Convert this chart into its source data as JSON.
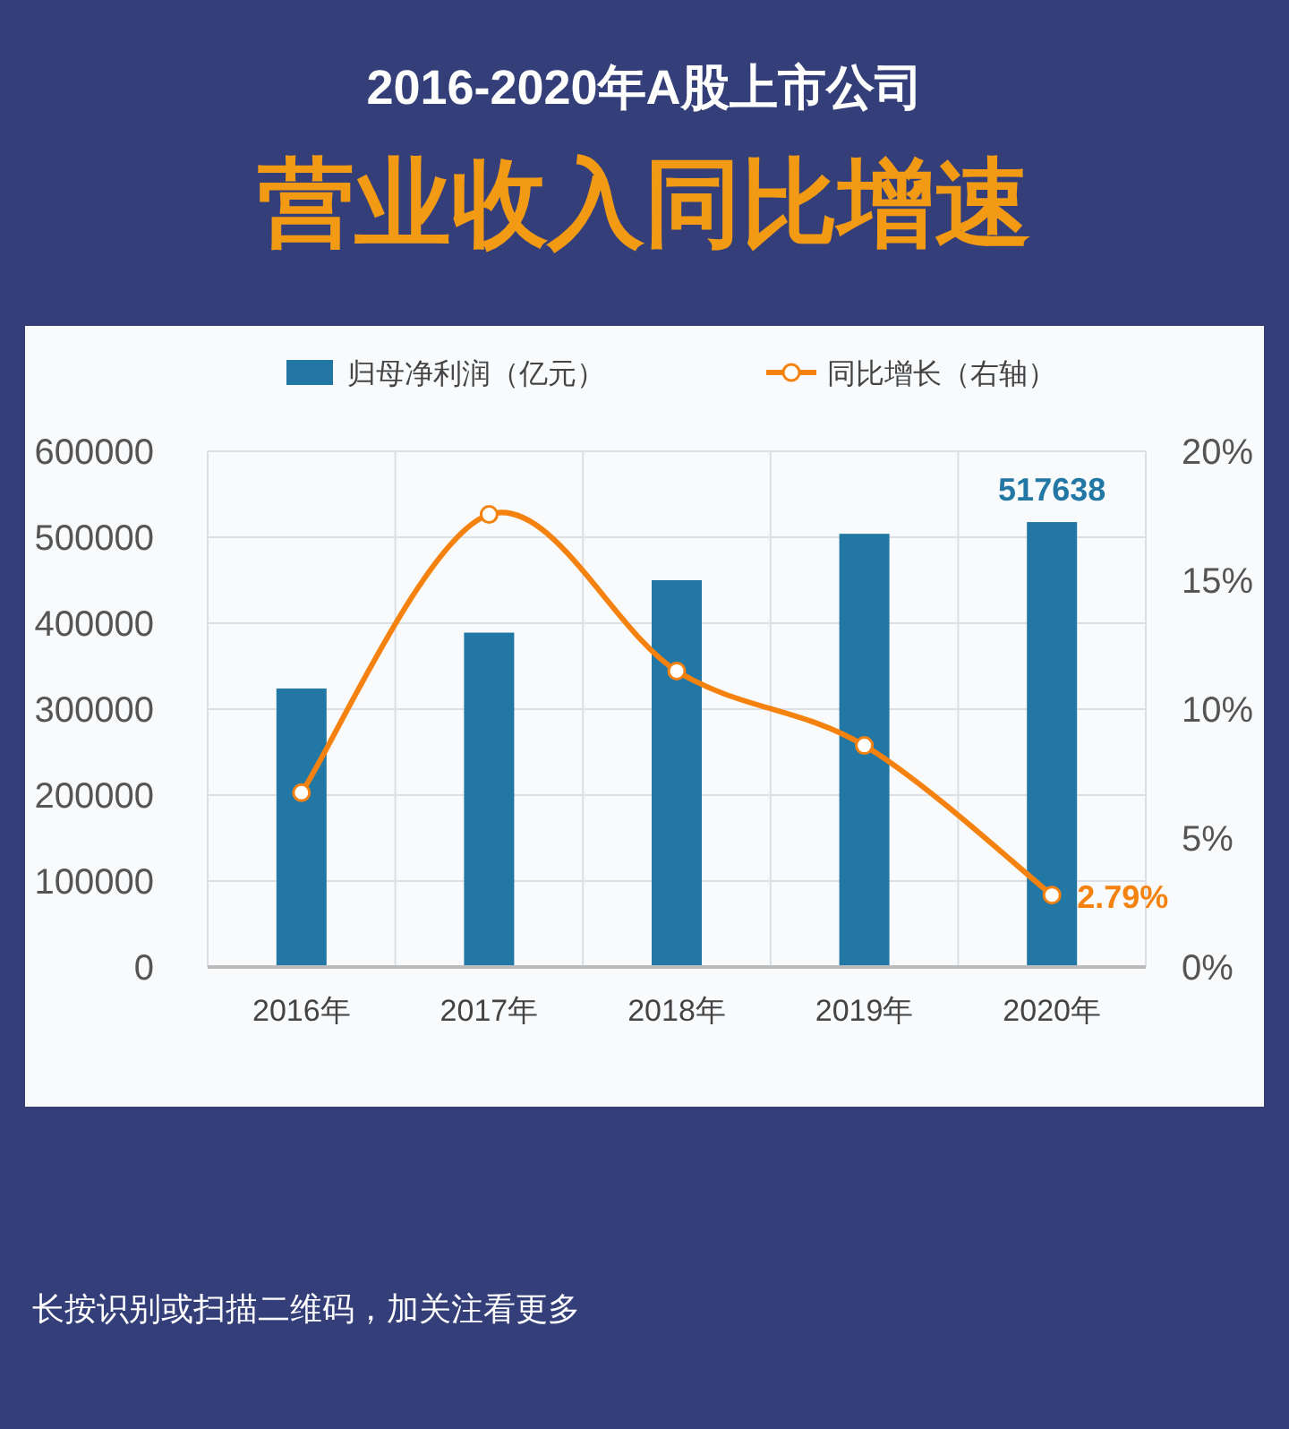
{
  "chart_data": {
    "type": "bar",
    "title": "2016-2020年A股上市公司",
    "subtitle": "营业收入同比增速",
    "categories": [
      "2016年",
      "2017年",
      "2018年",
      "2019年",
      "2020年"
    ],
    "series": [
      {
        "name": "归母净利润（亿元）",
        "color": "#2277a4",
        "values": [
          324000,
          389000,
          450000,
          504000,
          517638
        ],
        "value_labels": [
          null,
          null,
          null,
          null,
          "517638"
        ]
      },
      {
        "name": "同比增长（右轴）",
        "type": "line",
        "axis": "y2",
        "color": "#f5820f",
        "values": [
          6.76,
          17.55,
          11.48,
          8.59,
          2.79
        ],
        "value_labels": [
          null,
          null,
          null,
          null,
          "2.79%"
        ]
      }
    ],
    "ylim": [
      0,
      600000
    ],
    "yticks": [
      0,
      100000,
      200000,
      300000,
      400000,
      500000,
      600000
    ],
    "y2lim": [
      0,
      20
    ],
    "y2ticks": [
      {
        "value": 0,
        "label": "0%"
      },
      {
        "value": 5,
        "label": "5%"
      },
      {
        "value": 10,
        "label": "10%"
      },
      {
        "value": 15,
        "label": "15%"
      },
      {
        "value": 20,
        "label": "20%"
      }
    ],
    "grid": true,
    "legend": "top",
    "marker": "circle",
    "line_style": "solid",
    "annotations": [
      "长按识别或扫描二维码，加关注看更多"
    ]
  }
}
